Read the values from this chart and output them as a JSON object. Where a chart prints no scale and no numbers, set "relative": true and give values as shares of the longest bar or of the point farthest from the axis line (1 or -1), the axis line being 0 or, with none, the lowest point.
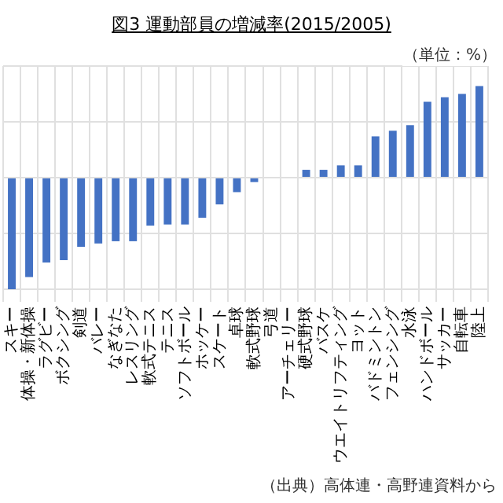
{
  "chart_data": {
    "type": "bar",
    "title": "図3 運動部員の増減率(2015/2005)",
    "relative": true,
    "grid": true,
    "color": "#4472c4",
    "categories": [
      "スキー",
      "体操・新体操",
      "ラグビー",
      "ボクシング",
      "剣道",
      "バレー",
      "なぎなた",
      "レスリング",
      "軟式テニス",
      "テニス",
      "ソフトボール",
      "ホッケー",
      "スケート",
      "卓球",
      "軟式野球",
      "弓道",
      "アーチェリー",
      "硬式野球",
      "バスケ",
      "ウエイトリフティング",
      "ヨット",
      "バドミントン",
      "フェンシング",
      "水泳",
      "ハンドボール",
      "サッカー",
      "自転車",
      "陸上"
    ],
    "values": [
      -1,
      -0.89,
      -0.76,
      -0.74,
      -0.62,
      -0.59,
      -0.57,
      -0.57,
      -0.43,
      -0.42,
      -0.42,
      -0.36,
      -0.24,
      -0.13,
      -0.04,
      0,
      0,
      0.07,
      0.07,
      0.11,
      0.11,
      0.37,
      0.42,
      0.47,
      0.68,
      0.72,
      0.75,
      0.82
    ],
    "annotations": [
      "（単位：%）",
      "（出典）高体連・高野連資料から"
    ]
  }
}
